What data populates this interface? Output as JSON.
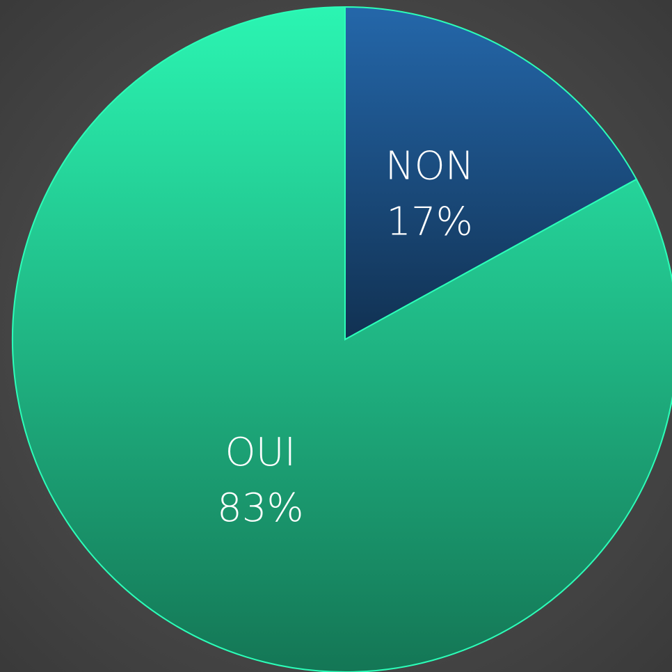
{
  "chart_data": {
    "type": "pie",
    "categories": [
      "NON",
      "OUI"
    ],
    "values": [
      17,
      83
    ],
    "value_labels": [
      "17%",
      "83%"
    ],
    "colors": [
      "#1d5288",
      "#22c48e"
    ]
  }
}
